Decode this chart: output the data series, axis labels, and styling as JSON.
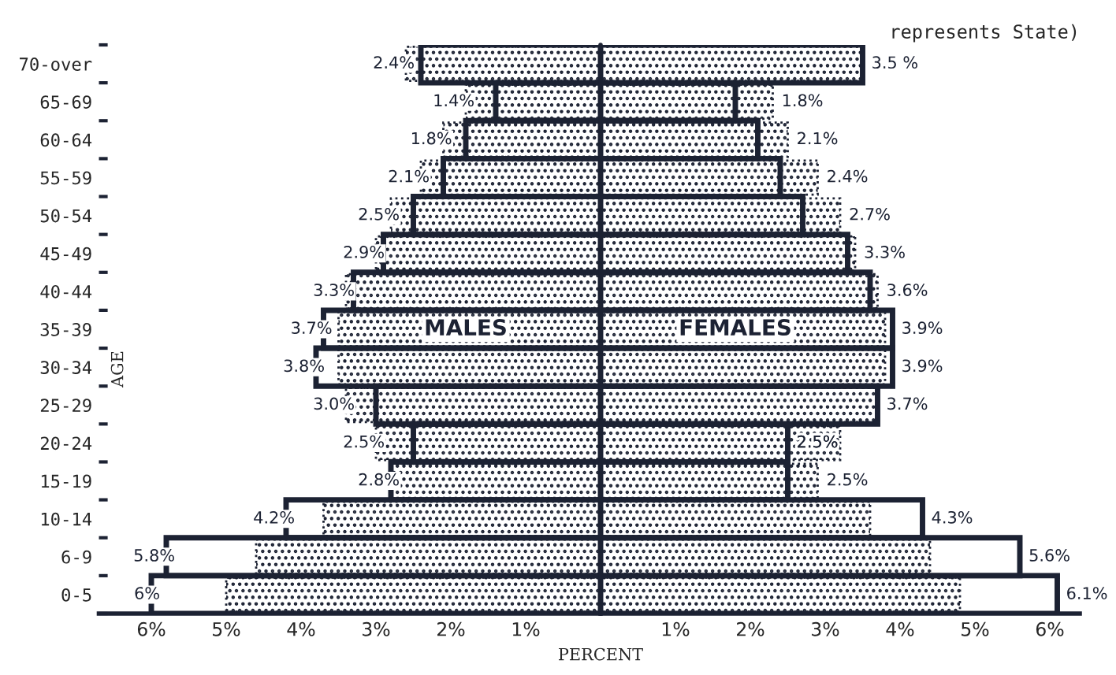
{
  "chart_data": [
    {
      "type": "bar",
      "orientation": "horizontal",
      "xlabel": "PERCENT",
      "ylabel": "AGE",
      "categories": [
        "70-over",
        "65-69",
        "60-64",
        "55-59",
        "50-54",
        "45-49",
        "40-44",
        "35-39",
        "30-34",
        "25-29",
        "20-24",
        "15-19",
        "10-14",
        "6-9",
        "0-5"
      ],
      "series": [
        {
          "color": "#1c2233",
          "line_style": "dotted",
          "values": [
            2.6,
            1.8,
            2.1,
            2.4,
            2.8,
            3.0,
            3.4,
            3.5,
            3.5,
            3.4,
            3.0,
            2.8,
            3.7,
            4.6,
            5.0
          ]
        },
        {
          "name": "MALES",
          "color": "#1c2233",
          "line_style": "solid",
          "values": [
            2.4,
            1.4,
            1.8,
            2.1,
            2.5,
            2.9,
            3.3,
            3.7,
            3.8,
            3.0,
            2.5,
            2.8,
            4.2,
            5.8,
            6
          ],
          "value_labels": [
            "2.4%",
            "1.4%",
            "1.8%",
            "2.1%",
            "2.5%",
            "2.9%",
            "3.3%",
            "3.7%",
            "3.8%",
            "3.0%",
            "2.5%",
            "2.8%",
            "4.2%",
            "5.8%",
            "6%"
          ]
        }
      ],
      "xlim": [
        6.7,
        0
      ],
      "xticks": [
        {
          "value": 6,
          "label": "6%"
        },
        {
          "value": 5,
          "label": "5%"
        },
        {
          "value": 4,
          "label": "4%"
        },
        {
          "value": 3,
          "label": "3%"
        },
        {
          "value": 2,
          "label": "2%"
        },
        {
          "value": 1,
          "label": "1%"
        }
      ],
      "ref_lines": [
        {
          "axis": "x",
          "value": 0,
          "color": "#1c2233",
          "line_style": "solid"
        }
      ]
    },
    {
      "type": "bar",
      "orientation": "horizontal",
      "title": "represents State)",
      "tick_labels": "x",
      "series": [
        {
          "color": "#1c2233",
          "line_style": "dotted",
          "values": [
            3.5,
            2.3,
            2.5,
            2.9,
            3.2,
            3.4,
            3.7,
            3.8,
            3.8,
            3.7,
            3.2,
            2.9,
            3.6,
            4.4,
            4.8
          ]
        },
        {
          "name": "FEMALES",
          "color": "#1c2233",
          "line_style": "solid",
          "values": [
            3.5,
            1.8,
            2.1,
            2.4,
            2.7,
            3.3,
            3.6,
            3.9,
            3.9,
            3.7,
            2.5,
            2.5,
            4.3,
            5.6,
            6.1
          ],
          "value_labels": [
            "3.5 %",
            "1.8%",
            "2.1%",
            "2.4%",
            "2.7%",
            "3.3%",
            "3.6%",
            "3.9%",
            "3.9%",
            "3.7%",
            "2.5%",
            "2.5%",
            "4.3%",
            "5.6%",
            "6.1%"
          ]
        }
      ],
      "xlim": [
        0,
        6.4
      ],
      "xticks": [
        {
          "value": 1,
          "label": "1%"
        },
        {
          "value": 2,
          "label": "2%"
        },
        {
          "value": 3,
          "label": "3%"
        },
        {
          "value": 4,
          "label": "4%"
        },
        {
          "value": 5,
          "label": "5%"
        },
        {
          "value": 6,
          "label": "6%"
        }
      ]
    }
  ]
}
